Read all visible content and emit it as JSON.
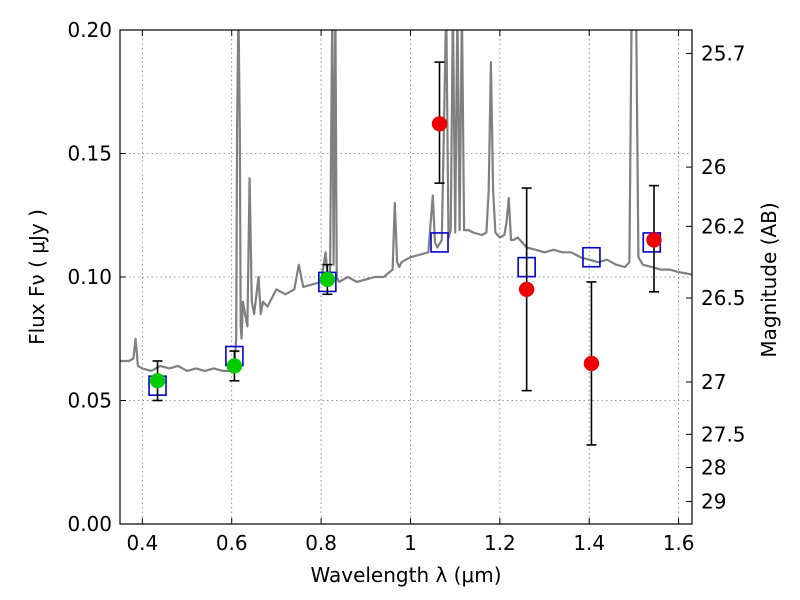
{
  "chart_data": {
    "type": "scatter",
    "xlabel": "Wavelength  λ (μm)",
    "ylabel": "Flux  Fν  ( μJy )",
    "ylabel_right": "Magnitude (AB)",
    "xlim": [
      0.35,
      1.63
    ],
    "ylim": [
      0.0,
      0.2
    ],
    "grid": true,
    "x_ticks": [
      0.4,
      0.6,
      0.8,
      1.0,
      1.2,
      1.4,
      1.6
    ],
    "x_tick_labels": [
      "0.4",
      "0.6",
      "0.8",
      "1",
      "1.2",
      "1.4",
      "1.6"
    ],
    "y_ticks": [
      0.0,
      0.05,
      0.1,
      0.15,
      0.2
    ],
    "y_tick_labels": [
      "0.00",
      "0.05",
      "0.10",
      "0.15",
      "0.20"
    ],
    "right_ticks": [
      {
        "label": "25.7",
        "flux": 0.1905
      },
      {
        "label": "26",
        "flux": 0.1445
      },
      {
        "label": "26.2",
        "flux": 0.1205
      },
      {
        "label": "26.5",
        "flux": 0.0915
      },
      {
        "label": "27",
        "flux": 0.0575
      },
      {
        "label": "27.5",
        "flux": 0.0363
      },
      {
        "label": "28",
        "flux": 0.0229
      },
      {
        "label": "29",
        "flux": 0.0091
      }
    ],
    "series": [
      {
        "kind": "spectrum_line",
        "color": "#808080",
        "x": [
          0.35,
          0.37,
          0.38,
          0.385,
          0.39,
          0.4,
          0.42,
          0.44,
          0.46,
          0.48,
          0.5,
          0.52,
          0.54,
          0.56,
          0.58,
          0.6,
          0.605,
          0.61,
          0.612,
          0.615,
          0.618,
          0.62,
          0.622,
          0.625,
          0.63,
          0.635,
          0.64,
          0.645,
          0.65,
          0.66,
          0.665,
          0.67,
          0.68,
          0.7,
          0.72,
          0.74,
          0.75,
          0.76,
          0.78,
          0.8,
          0.81,
          0.815,
          0.82,
          0.825,
          0.828,
          0.832,
          0.835,
          0.84,
          0.86,
          0.88,
          0.9,
          0.92,
          0.94,
          0.96,
          0.965,
          0.97,
          0.975,
          0.98,
          1.0,
          1.02,
          1.04,
          1.05,
          1.055,
          1.06,
          1.07,
          1.08,
          1.085,
          1.09,
          1.095,
          1.1,
          1.105,
          1.11,
          1.115,
          1.12,
          1.13,
          1.14,
          1.16,
          1.17,
          1.175,
          1.18,
          1.185,
          1.19,
          1.2,
          1.21,
          1.215,
          1.22,
          1.225,
          1.23,
          1.24,
          1.26,
          1.28,
          1.3,
          1.32,
          1.34,
          1.36,
          1.38,
          1.4,
          1.42,
          1.44,
          1.46,
          1.48,
          1.49,
          1.495,
          1.5,
          1.505,
          1.51,
          1.52,
          1.54,
          1.56,
          1.58,
          1.6,
          1.63
        ],
        "y": [
          0.066,
          0.066,
          0.067,
          0.075,
          0.064,
          0.063,
          0.062,
          0.064,
          0.063,
          0.064,
          0.062,
          0.063,
          0.062,
          0.063,
          0.062,
          0.062,
          0.063,
          0.075,
          0.16,
          0.21,
          0.16,
          0.08,
          0.075,
          0.09,
          0.085,
          0.08,
          0.14,
          0.09,
          0.085,
          0.1,
          0.085,
          0.09,
          0.088,
          0.095,
          0.093,
          0.095,
          0.105,
          0.096,
          0.097,
          0.098,
          0.11,
          0.099,
          0.1,
          0.21,
          0.105,
          0.21,
          0.1,
          0.098,
          0.1,
          0.098,
          0.099,
          0.1,
          0.1,
          0.103,
          0.13,
          0.106,
          0.104,
          0.106,
          0.108,
          0.109,
          0.11,
          0.133,
          0.114,
          0.112,
          0.115,
          0.21,
          0.116,
          0.119,
          0.21,
          0.118,
          0.21,
          0.119,
          0.21,
          0.119,
          0.119,
          0.118,
          0.117,
          0.118,
          0.135,
          0.187,
          0.135,
          0.118,
          0.116,
          0.117,
          0.122,
          0.132,
          0.115,
          0.115,
          0.116,
          0.112,
          0.111,
          0.11,
          0.111,
          0.11,
          0.11,
          0.108,
          0.107,
          0.106,
          0.107,
          0.105,
          0.104,
          0.106,
          0.21,
          0.21,
          0.21,
          0.108,
          0.105,
          0.104,
          0.103,
          0.103,
          0.102,
          0.101
        ]
      },
      {
        "kind": "open_squares",
        "color": "#0000cc",
        "x": [
          0.434,
          0.606,
          0.814,
          1.065,
          1.26,
          1.405,
          1.54
        ],
        "y": [
          0.056,
          0.068,
          0.098,
          0.114,
          0.104,
          0.108,
          0.114
        ]
      },
      {
        "kind": "filled_circles",
        "color": "#00cc00",
        "x": [
          0.434,
          0.606,
          0.814
        ],
        "y": [
          0.058,
          0.064,
          0.099
        ],
        "yerr_low": [
          0.05,
          0.058,
          0.093
        ],
        "yerr_high": [
          0.066,
          0.07,
          0.105
        ]
      },
      {
        "kind": "filled_circles",
        "color": "#ee0000",
        "x": [
          1.065,
          1.26,
          1.405,
          1.545
        ],
        "y": [
          0.162,
          0.095,
          0.065,
          0.115
        ],
        "yerr_low": [
          0.138,
          0.054,
          0.032,
          0.094
        ],
        "yerr_high": [
          0.187,
          0.136,
          0.098,
          0.137
        ]
      }
    ]
  }
}
